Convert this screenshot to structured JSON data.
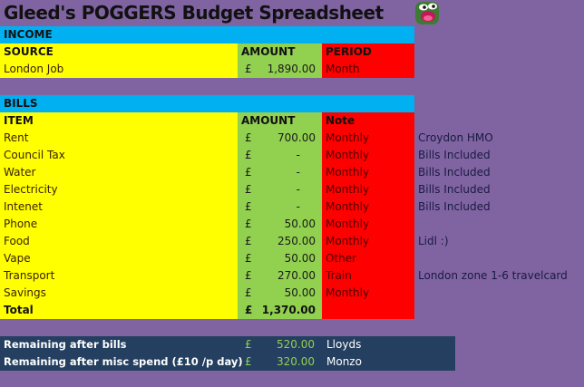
{
  "title": "Gleed's POGGERS Budget Spreadsheet",
  "logo_icon": "pepe-poggers-emote",
  "colors": {
    "background": "#8064a2",
    "section_header": "#00b0f0",
    "col_item": "#ffff00",
    "col_amount": "#92d050",
    "col_period": "#ff0000",
    "summary": "#243f60"
  },
  "income": {
    "header": "INCOME",
    "columns": [
      "SOURCE",
      "AMOUNT",
      "PERIOD"
    ],
    "rows": [
      {
        "source": "London Job",
        "currency": "£",
        "amount": "1,890.00",
        "period": "Month"
      }
    ]
  },
  "bills": {
    "header": "BILLS",
    "columns": [
      "ITEM",
      "AMOUNT",
      "Note"
    ],
    "rows": [
      {
        "item": "Rent",
        "currency": "£",
        "amount": "700.00",
        "period": "Monthly",
        "note": "Croydon HMO"
      },
      {
        "item": "Council Tax",
        "currency": "£",
        "amount": "-",
        "period": "Monthly",
        "note": "Bills Included"
      },
      {
        "item": "Water",
        "currency": "£",
        "amount": "-",
        "period": "Monthly",
        "note": "Bills Included"
      },
      {
        "item": "Electricity",
        "currency": "£",
        "amount": "-",
        "period": "Monthly",
        "note": "Bills Included"
      },
      {
        "item": "Intenet",
        "currency": "£",
        "amount": "-",
        "period": "Monthly",
        "note": "Bills Included"
      },
      {
        "item": "Phone",
        "currency": "£",
        "amount": "50.00",
        "period": "Monthly",
        "note": ""
      },
      {
        "item": "Food",
        "currency": "£",
        "amount": "250.00",
        "period": "Monthly",
        "note": "Lidl :)"
      },
      {
        "item": "Vape",
        "currency": "£",
        "amount": "50.00",
        "period": "Other",
        "note": ""
      },
      {
        "item": "Transport",
        "currency": "£",
        "amount": "270.00",
        "period": "Train",
        "note": "London zone 1-6 travelcard"
      },
      {
        "item": "Savings",
        "currency": "£",
        "amount": "50.00",
        "period": "Monthly",
        "note": ""
      }
    ],
    "total": {
      "label": "Total",
      "currency": "£",
      "amount": "1,370.00"
    }
  },
  "summary": [
    {
      "label": "Remaining after bills",
      "currency": "£",
      "amount": "520.00",
      "bank": "Lloyds"
    },
    {
      "label": "Remaining after misc spend (£10 /p day)",
      "currency": "£",
      "amount": "320.00",
      "bank": "Monzo"
    }
  ]
}
